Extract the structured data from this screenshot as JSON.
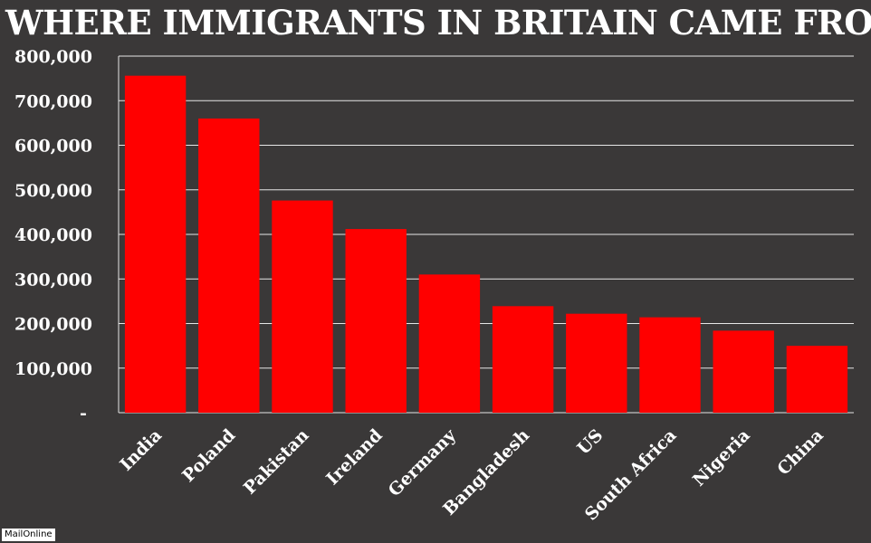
{
  "chart_data": {
    "type": "bar",
    "title": "WHERE IMMIGRANTS IN BRITAIN CAME FROM",
    "categories": [
      "India",
      "Poland",
      "Pakistan",
      "Ireland",
      "Germany",
      "Bangladesh",
      "US",
      "South Africa",
      "Nigeria",
      "China"
    ],
    "values": [
      756000,
      660000,
      476000,
      412000,
      310000,
      239000,
      222000,
      214000,
      184000,
      150000
    ],
    "ylim": [
      0,
      800000
    ],
    "yticks": [
      0,
      100000,
      200000,
      300000,
      400000,
      500000,
      600000,
      700000,
      800000
    ],
    "ytick_labels": [
      "-",
      "100,000",
      "200,000",
      "300,000",
      "400,000",
      "500,000",
      "600,000",
      "700,000",
      "800,000"
    ],
    "grid": true,
    "bar_color": "#ff0000",
    "background_color": "#3a3838"
  },
  "source_credit": "MailOnline"
}
